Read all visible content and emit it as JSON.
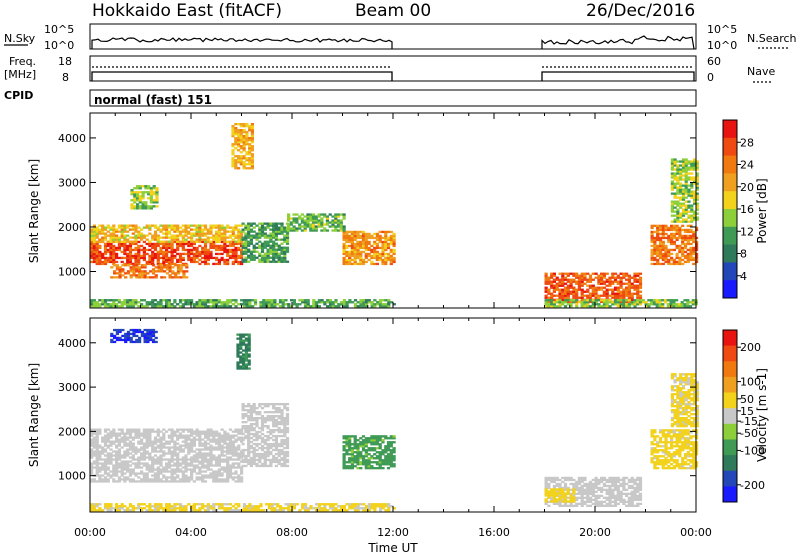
{
  "header": {
    "station": "Hokkaido East (fitACF)",
    "beam": "Beam 00",
    "date": "26/Dec/2016"
  },
  "top_panels": {
    "nsky_label": "N.Sky",
    "nsearch_label": "N.Search",
    "freq_label_line1": "Freq.",
    "freq_label_line2": "[MHz]",
    "nave_label": "Nave",
    "cpid_label": "CPID",
    "cpid_value": "normal (fast) 151",
    "noise_ticks": [
      "10^5",
      "10^0"
    ],
    "freq_ticks": [
      "18",
      "8"
    ],
    "nave_ticks": [
      "60",
      "0"
    ]
  },
  "colors": {
    "power_scale": [
      "#1a1aff",
      "#2346b8",
      "#2f7a5a",
      "#3e9a55",
      "#8ccf3a",
      "#f2d21b",
      "#f0a020",
      "#f07a10",
      "#ef4a12",
      "#e8140f"
    ],
    "velocity_scale": [
      "#e8140f",
      "#ef4a12",
      "#f07a10",
      "#f0a020",
      "#f2d21b",
      "#c8c8c8",
      "#8ccf3a",
      "#3e9a55",
      "#2f7a5a",
      "#2346b8",
      "#1a1aff"
    ]
  },
  "chart_data": [
    {
      "type": "heatmap",
      "name": "power",
      "ylabel": "Slant Range [km]",
      "xlabel": "Time UT",
      "xticks": [
        "00:00",
        "04:00",
        "08:00",
        "12:00",
        "16:00",
        "20:00",
        "00:00"
      ],
      "xlim_hours": [
        0,
        24
      ],
      "yticks": [
        1000,
        2000,
        3000,
        4000
      ],
      "ylim": [
        180,
        4560
      ],
      "colorbar": {
        "label": "Power [dB]",
        "ticks": [
          4,
          8,
          12,
          16,
          20,
          24,
          28
        ],
        "range": [
          0,
          32
        ]
      },
      "data_gap_hours": [
        12,
        18
      ],
      "regions": [
        {
          "t": [
            0.0,
            6.0
          ],
          "r": [
            1150,
            1650
          ],
          "v": 27
        },
        {
          "t": [
            0.0,
            6.0
          ],
          "r": [
            1650,
            2050
          ],
          "v": 19
        },
        {
          "t": [
            0.8,
            3.8
          ],
          "r": [
            850,
            1150
          ],
          "v": 24
        },
        {
          "t": [
            0.0,
            12.0
          ],
          "r": [
            200,
            380
          ],
          "v": 12
        },
        {
          "t": [
            6.0,
            7.8
          ],
          "r": [
            1200,
            2100
          ],
          "v": 11
        },
        {
          "t": [
            5.6,
            6.4
          ],
          "r": [
            3300,
            4300
          ],
          "v": 20
        },
        {
          "t": [
            1.6,
            2.6
          ],
          "r": [
            2400,
            2900
          ],
          "v": 15
        },
        {
          "t": [
            10.0,
            12.0
          ],
          "r": [
            1150,
            1900
          ],
          "v": 22
        },
        {
          "t": [
            7.8,
            10.0
          ],
          "r": [
            1900,
            2300
          ],
          "v": 13
        },
        {
          "t": [
            18.0,
            21.8
          ],
          "r": [
            300,
            950
          ],
          "v": 26
        },
        {
          "t": [
            18.0,
            24.0
          ],
          "r": [
            200,
            380
          ],
          "v": 14
        },
        {
          "t": [
            22.2,
            24.0
          ],
          "r": [
            1150,
            2050
          ],
          "v": 24
        },
        {
          "t": [
            23.0,
            24.0
          ],
          "r": [
            2100,
            3500
          ],
          "v": 15
        }
      ]
    },
    {
      "type": "heatmap",
      "name": "velocity",
      "ylabel": "Slant Range [km]",
      "xlabel": "Time UT",
      "xticks": [
        "00:00",
        "04:00",
        "08:00",
        "12:00",
        "16:00",
        "20:00",
        "00:00"
      ],
      "xlim_hours": [
        0,
        24
      ],
      "yticks": [
        1000,
        2000,
        3000,
        4000
      ],
      "ylim": [
        180,
        4560
      ],
      "colorbar": {
        "label": "Velocity [m s-1]",
        "ticks": [
          200,
          100,
          50,
          15,
          -15,
          -50,
          -100,
          -200
        ],
        "range": [
          -250,
          250
        ]
      },
      "data_gap_hours": [
        12,
        18
      ],
      "regions": [
        {
          "t": [
            0.0,
            6.0
          ],
          "r": [
            850,
            2050
          ],
          "v": 0
        },
        {
          "t": [
            0.0,
            12.0
          ],
          "r": [
            200,
            380
          ],
          "v": 30
        },
        {
          "t": [
            6.0,
            7.8
          ],
          "r": [
            1200,
            2600
          ],
          "v": 5
        },
        {
          "t": [
            10.0,
            12.0
          ],
          "r": [
            1150,
            1900
          ],
          "v": -80
        },
        {
          "t": [
            0.8,
            2.6
          ],
          "r": [
            4000,
            4300
          ],
          "v": -200
        },
        {
          "t": [
            5.8,
            6.3
          ],
          "r": [
            3400,
            4200
          ],
          "v": -120
        },
        {
          "t": [
            18.0,
            21.8
          ],
          "r": [
            300,
            950
          ],
          "v": 5
        },
        {
          "t": [
            18.0,
            19.2
          ],
          "r": [
            400,
            700
          ],
          "v": 40
        },
        {
          "t": [
            22.2,
            24.0
          ],
          "r": [
            1150,
            2050
          ],
          "v": 35
        },
        {
          "t": [
            23.0,
            24.0
          ],
          "r": [
            2100,
            3300
          ],
          "v": 30
        }
      ]
    }
  ]
}
